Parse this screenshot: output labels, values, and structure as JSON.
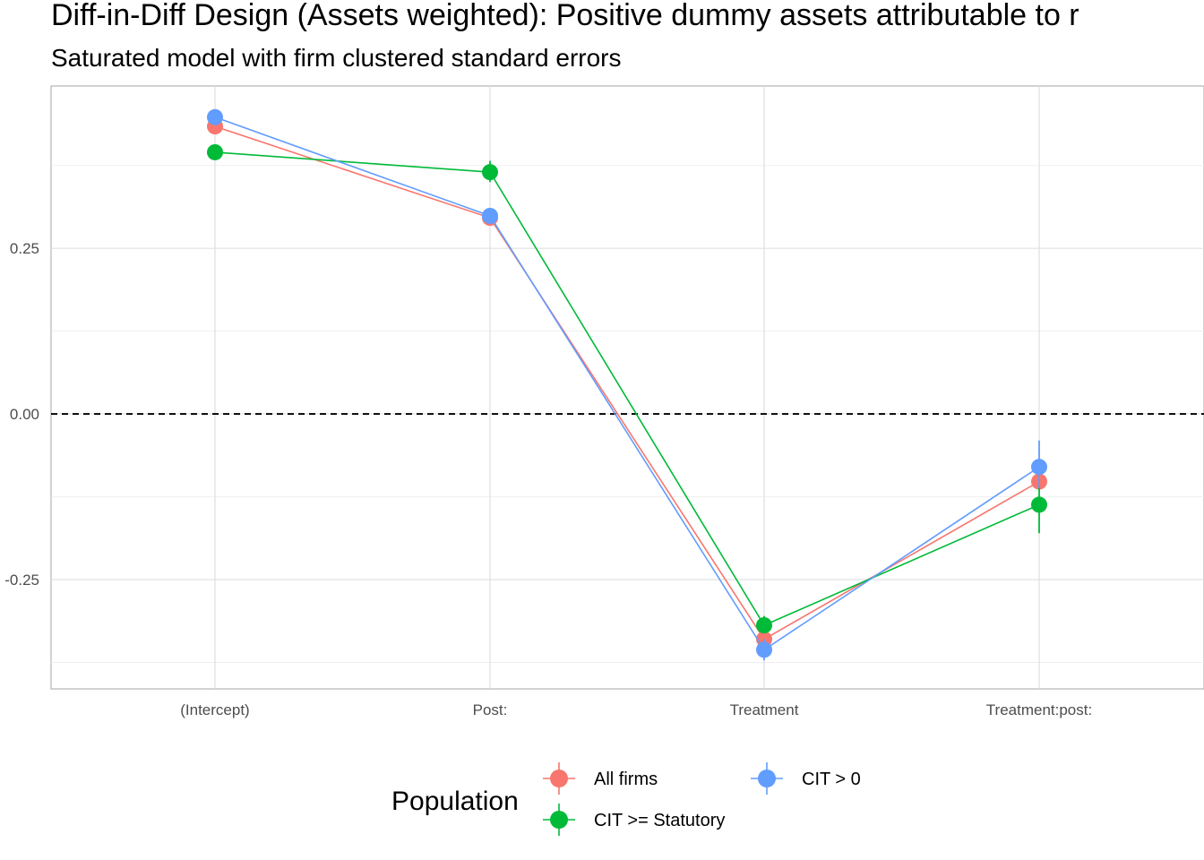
{
  "chart_data": {
    "type": "line",
    "title": "Diff-in-Diff Design (Assets weighted): Positive dummy assets attributable to r",
    "subtitle": "Saturated model with firm clustered standard errors",
    "xlabel": "",
    "ylabel": "",
    "categories": [
      "(Intercept)",
      "Post:",
      "Treatment",
      "Treatment:post:"
    ],
    "y_ticks": [
      0.25,
      0.0,
      -0.25
    ],
    "y_tick_labels": [
      "0.25",
      "0.00",
      "-0.25"
    ],
    "ylim": [
      -0.415,
      0.495
    ],
    "grid": true,
    "reference_line": {
      "y": 0,
      "style": "dashed",
      "color": "#000000"
    },
    "legend": {
      "title": "Population",
      "position": "bottom",
      "entries": [
        "All firms",
        "CIT > 0",
        "CIT >= Statutory"
      ]
    },
    "series": [
      {
        "name": "All firms",
        "color": "#F8766D",
        "values": [
          0.434,
          0.296,
          -0.34,
          -0.102
        ],
        "ci_low": [
          0.43,
          0.29,
          -0.352,
          -0.112
        ],
        "ci_high": [
          0.438,
          0.302,
          -0.328,
          -0.092
        ]
      },
      {
        "name": "CIT >= Statutory",
        "color": "#00BA38",
        "values": [
          0.395,
          0.365,
          -0.319,
          -0.137
        ],
        "ci_low": [
          0.391,
          0.35,
          -0.331,
          -0.18
        ],
        "ci_high": [
          0.399,
          0.382,
          -0.305,
          -0.108
        ]
      },
      {
        "name": "CIT > 0",
        "color": "#619CFF",
        "values": [
          0.448,
          0.299,
          -0.356,
          -0.08
        ],
        "ci_low": [
          0.444,
          0.293,
          -0.372,
          -0.112
        ],
        "ci_high": [
          0.452,
          0.305,
          -0.34,
          -0.04
        ]
      }
    ]
  }
}
